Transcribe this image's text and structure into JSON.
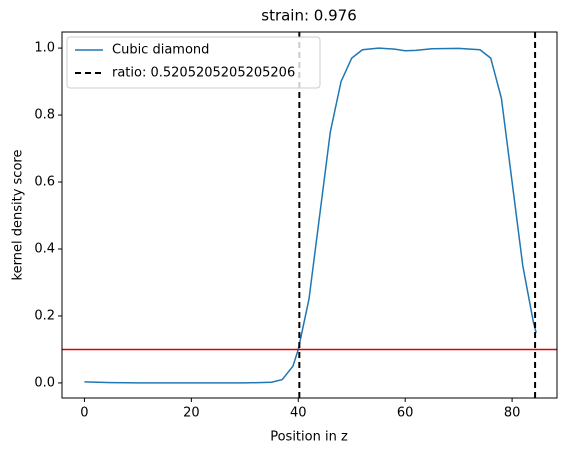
{
  "chart_data": {
    "type": "line",
    "title": "strain: 0.976",
    "x_label": "Position in z",
    "y_label": "kernel density score",
    "x": [
      0,
      5,
      10,
      20,
      30,
      35,
      37,
      39,
      40,
      42,
      44,
      46,
      48,
      50,
      52,
      55,
      58,
      60,
      62,
      65,
      70,
      74,
      76,
      78,
      80,
      82,
      84,
      84.5
    ],
    "series": [
      {
        "name": "Cubic diamond",
        "color": "#1f77b4",
        "values": [
          0.003,
          0.001,
          0.0,
          0.0,
          0.0,
          0.002,
          0.01,
          0.05,
          0.1,
          0.25,
          0.5,
          0.75,
          0.9,
          0.97,
          0.995,
          1.0,
          0.997,
          0.992,
          0.993,
          0.998,
          0.999,
          0.995,
          0.97,
          0.85,
          0.6,
          0.35,
          0.18,
          0.15
        ]
      }
    ],
    "vlines": {
      "name": "ratio: 0.5205205205205206",
      "color": "#000000",
      "values": [
        40.2,
        84.3
      ]
    },
    "hline": {
      "value": 0.1,
      "color": "#e00000"
    },
    "xlim": [
      -4.2,
      88.4
    ],
    "ylim": [
      -0.045,
      1.048
    ],
    "xticks": [
      0,
      20,
      40,
      60,
      80
    ],
    "yticks": [
      {
        "value": 0,
        "label": "0.0"
      },
      0.2,
      0.4,
      0.6,
      0.8,
      {
        "value": 1,
        "label": "1.0"
      }
    ],
    "legend": "upper left"
  }
}
